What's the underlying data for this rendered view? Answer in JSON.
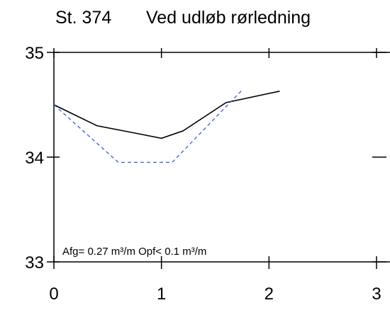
{
  "chart_data": {
    "type": "line",
    "title_station": "St. 374",
    "title_location": "Ved udløb rørledning",
    "xlabel": "",
    "ylabel": "",
    "xlim": [
      0,
      3
    ],
    "ylim": [
      33,
      35
    ],
    "x_ticks": [
      0,
      1,
      2,
      3
    ],
    "y_ticks": [
      33,
      34,
      35
    ],
    "x_tick_labels": [
      "0",
      "1",
      "2",
      "3"
    ],
    "y_tick_labels": [
      "33",
      "34",
      "35"
    ],
    "grid": false,
    "annotation": "Afg= 0.27 m³/m  Opf< 0.1 m³/m",
    "series": [
      {
        "color": "#000000",
        "dash": "solid",
        "x": [
          0,
          0.4,
          0.8,
          1.0,
          1.2,
          1.6,
          2.1
        ],
        "y": [
          34.5,
          34.3,
          34.22,
          34.18,
          34.25,
          34.52,
          34.63
        ]
      },
      {
        "color": "#3a5fd9",
        "dash": "dashed",
        "x": [
          0,
          0.6,
          1.1,
          1.75
        ],
        "y": [
          34.5,
          33.95,
          33.95,
          34.64
        ]
      }
    ]
  }
}
